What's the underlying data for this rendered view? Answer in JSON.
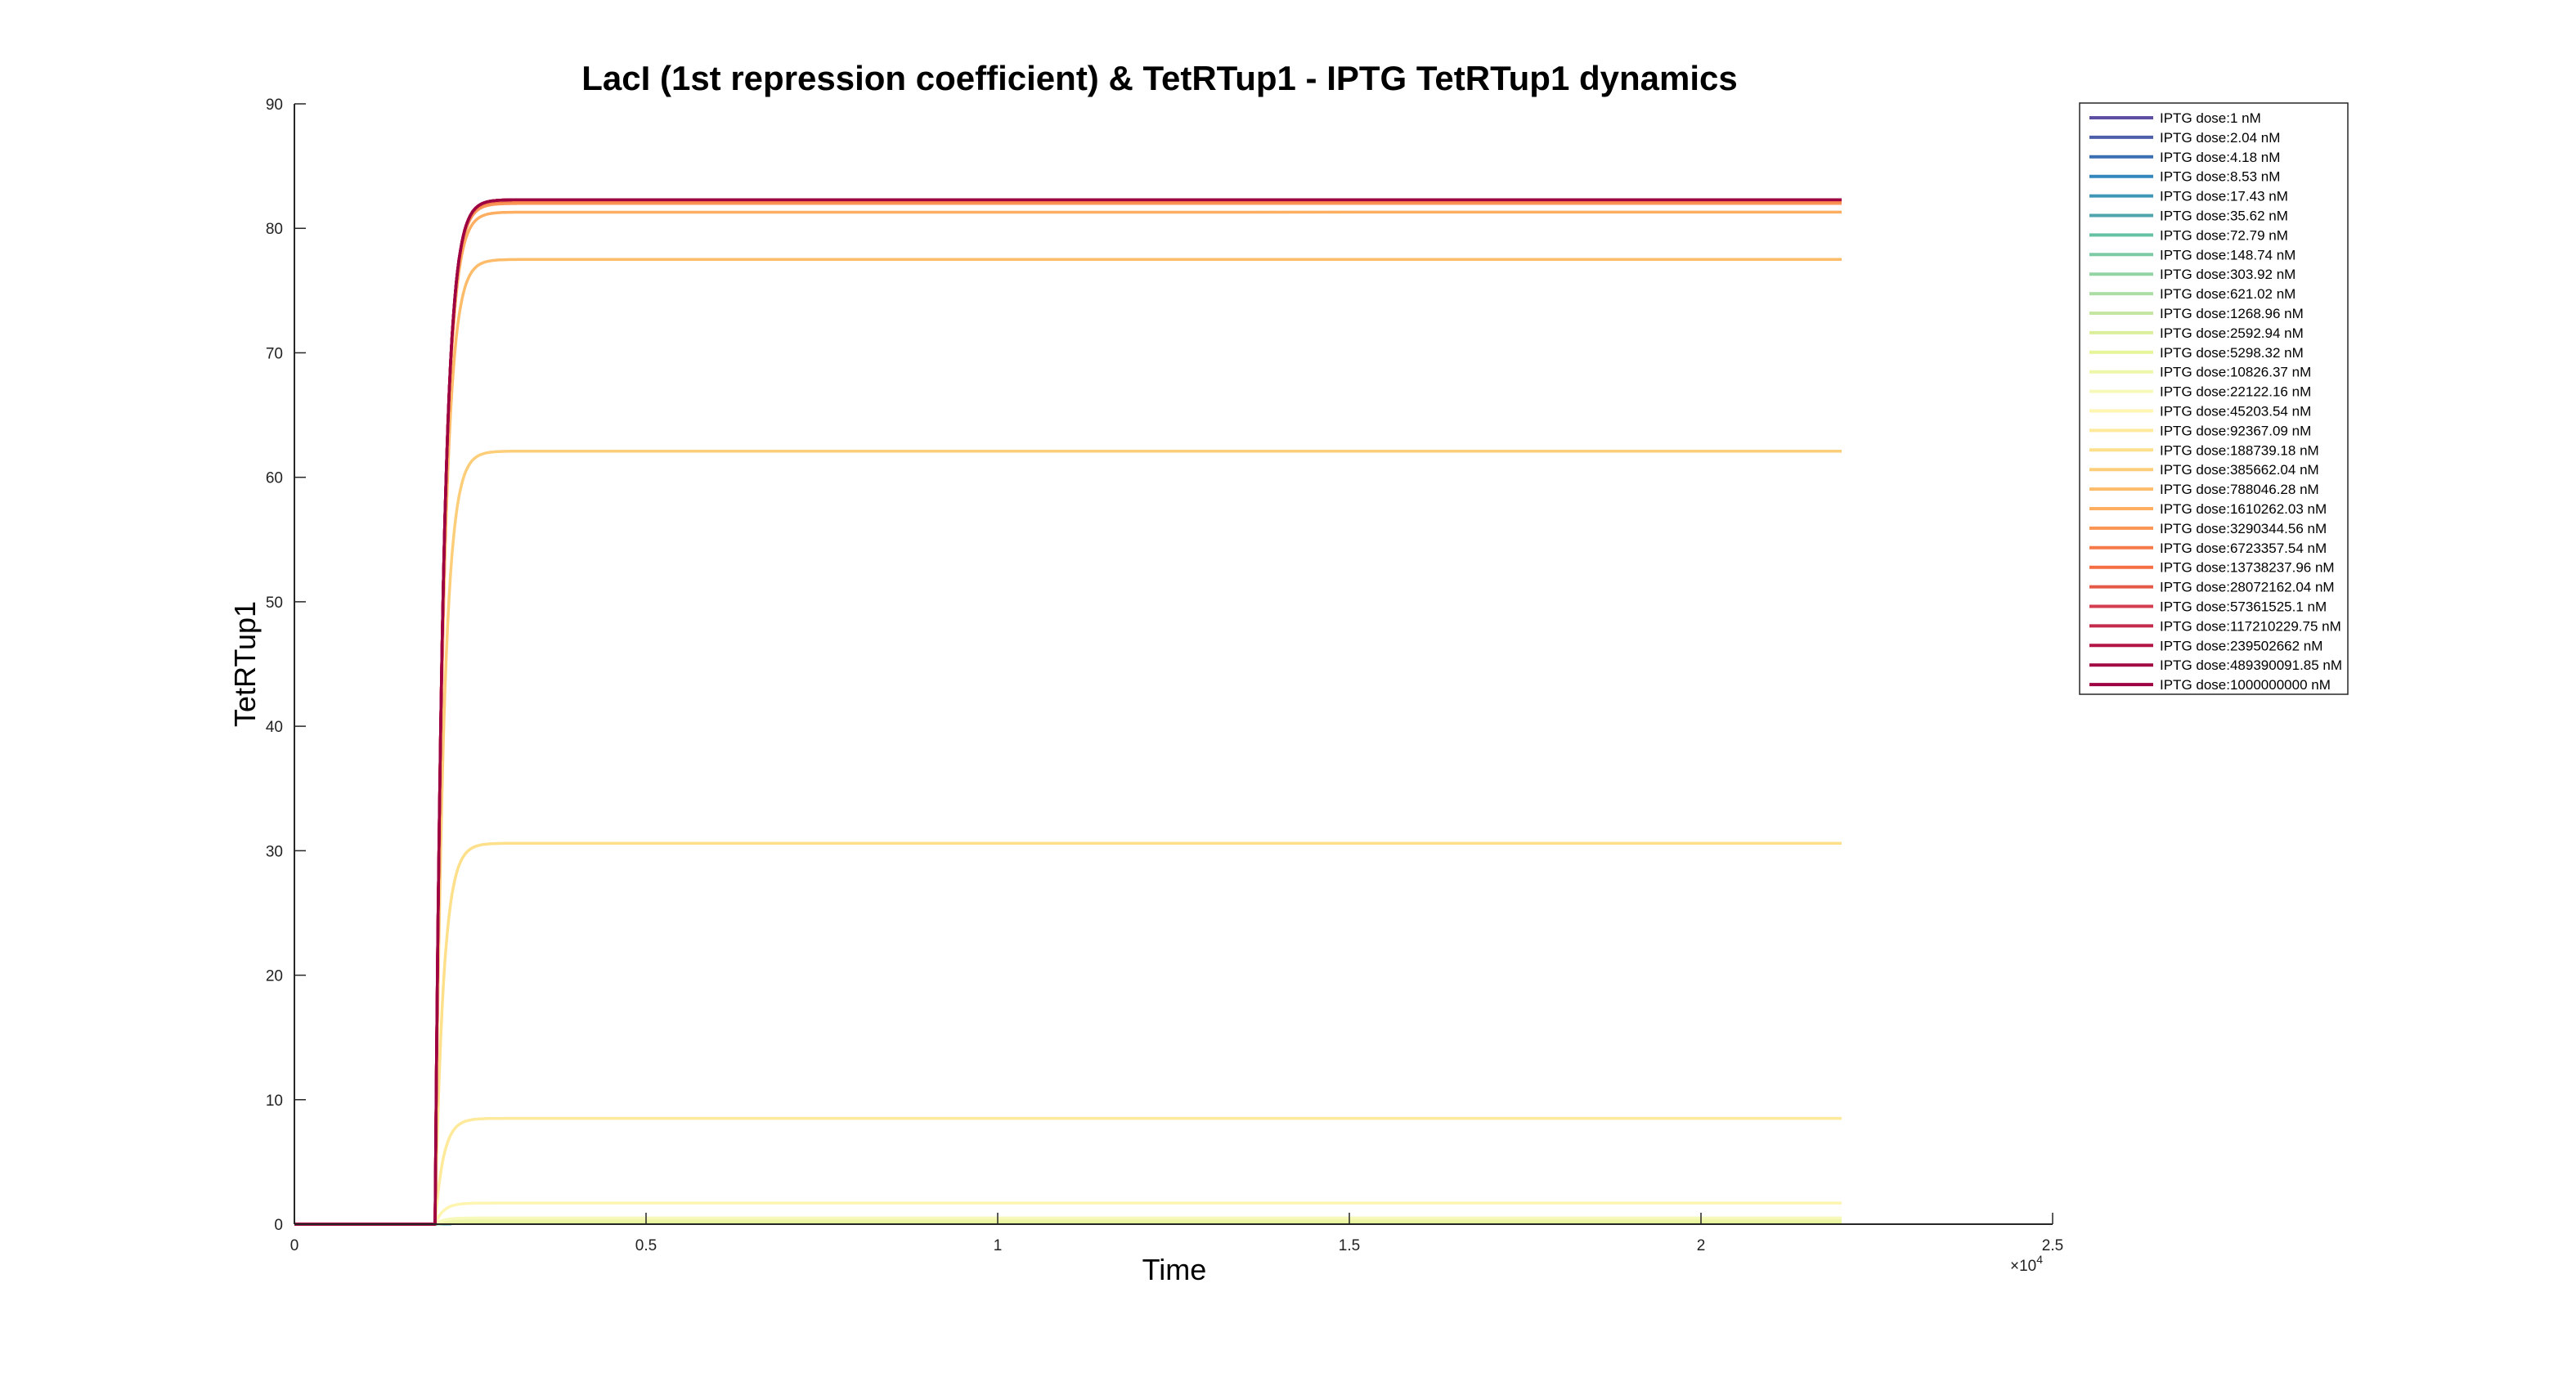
{
  "chart_data": {
    "type": "line",
    "title": "LacI (1st repression coefficient) & TetRTup1 - IPTG TetRTup1 dynamics",
    "xlabel": "Time",
    "ylabel": "TetRTup1",
    "xlim": [
      0,
      25000
    ],
    "ylim": [
      0,
      90
    ],
    "x_tick_values": [
      0,
      5000,
      10000,
      15000,
      20000,
      25000
    ],
    "x_tick_labels": [
      "0",
      "0.5",
      "1",
      "1.5",
      "2",
      "2.5"
    ],
    "x_exponent_label": "×10",
    "x_exponent_power": "4",
    "y_tick_values": [
      0,
      10,
      20,
      30,
      40,
      50,
      60,
      70,
      80,
      90
    ],
    "y_tick_labels": [
      "0",
      "10",
      "20",
      "30",
      "40",
      "50",
      "60",
      "70",
      "80",
      "90"
    ],
    "t_end": 22000,
    "t_onset": 2000,
    "legend_position": "top-right",
    "series": [
      {
        "name": "IPTG dose:1 nM",
        "steady": 0.05,
        "color": "#5e4fa2"
      },
      {
        "name": "IPTG dose:2.04 nM",
        "steady": 0.05,
        "color": "#4d5fab"
      },
      {
        "name": "IPTG dose:4.18 nM",
        "steady": 0.05,
        "color": "#3b6fb3"
      },
      {
        "name": "IPTG dose:8.53 nM",
        "steady": 0.05,
        "color": "#3288bd"
      },
      {
        "name": "IPTG dose:17.43 nM",
        "steady": 0.05,
        "color": "#3f96b7"
      },
      {
        "name": "IPTG dose:35.62 nM",
        "steady": 0.05,
        "color": "#4ea5ad"
      },
      {
        "name": "IPTG dose:72.79 nM",
        "steady": 0.06,
        "color": "#66c2a5"
      },
      {
        "name": "IPTG dose:148.74 nM",
        "steady": 0.07,
        "color": "#7ccba4"
      },
      {
        "name": "IPTG dose:303.92 nM",
        "steady": 0.08,
        "color": "#93d4a4"
      },
      {
        "name": "IPTG dose:621.02 nM",
        "steady": 0.1,
        "color": "#abdda4"
      },
      {
        "name": "IPTG dose:1268.96 nM",
        "steady": 0.12,
        "color": "#c3e6a0"
      },
      {
        "name": "IPTG dose:2592.94 nM",
        "steady": 0.15,
        "color": "#dbef9b"
      },
      {
        "name": "IPTG dose:5298.32 nM",
        "steady": 0.2,
        "color": "#e6f598"
      },
      {
        "name": "IPTG dose:10826.37 nM",
        "steady": 0.3,
        "color": "#eef6a9"
      },
      {
        "name": "IPTG dose:22122.16 nM",
        "steady": 0.5,
        "color": "#f6f9b9"
      },
      {
        "name": "IPTG dose:45203.54 nM",
        "steady": 1.7,
        "color": "#fdf5b0"
      },
      {
        "name": "IPTG dose:92367.09 nM",
        "steady": 8.5,
        "color": "#feea9a"
      },
      {
        "name": "IPTG dose:188739.18 nM",
        "steady": 30.6,
        "color": "#fee08b"
      },
      {
        "name": "IPTG dose:385662.04 nM",
        "steady": 62.1,
        "color": "#fdce7a"
      },
      {
        "name": "IPTG dose:788046.28 nM",
        "steady": 77.5,
        "color": "#fdbc6a"
      },
      {
        "name": "IPTG dose:1610262.03 nM",
        "steady": 81.3,
        "color": "#fdae61"
      },
      {
        "name": "IPTG dose:3290344.56 nM",
        "steady": 82.0,
        "color": "#f99555"
      },
      {
        "name": "IPTG dose:6723357.54 nM",
        "steady": 82.2,
        "color": "#f57c4a"
      },
      {
        "name": "IPTG dose:13738237.96 nM",
        "steady": 82.3,
        "color": "#f46d43"
      },
      {
        "name": "IPTG dose:28072162.04 nM",
        "steady": 82.3,
        "color": "#e55a47"
      },
      {
        "name": "IPTG dose:57361525.1 nM",
        "steady": 82.3,
        "color": "#d53e4f"
      },
      {
        "name": "IPTG dose:117210229.75 nM",
        "steady": 82.3,
        "color": "#c42a4c"
      },
      {
        "name": "IPTG dose:239502662 nM",
        "steady": 82.3,
        "color": "#b31646"
      },
      {
        "name": "IPTG dose:489390091.85 nM",
        "steady": 82.3,
        "color": "#a10a42"
      },
      {
        "name": "IPTG dose:1000000000 nM",
        "steady": 82.3,
        "color": "#9e0142"
      }
    ]
  }
}
